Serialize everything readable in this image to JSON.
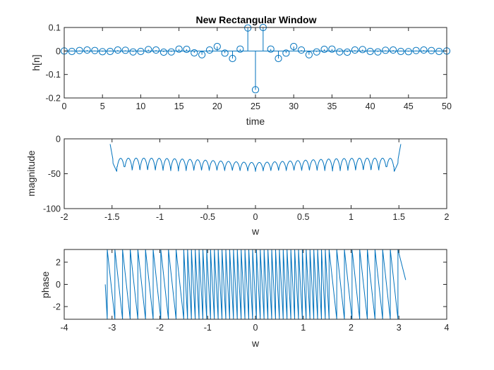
{
  "chart_data": [
    {
      "type": "stem",
      "title": "New Rectangular Window",
      "xlabel": "time",
      "ylabel": "h[n]",
      "xlim": [
        0,
        50
      ],
      "ylim": [
        -0.2,
        0.1
      ],
      "xticks": [
        0,
        5,
        10,
        15,
        20,
        25,
        30,
        35,
        40,
        45,
        50
      ],
      "xtick_labels": [
        "0",
        "5",
        "10",
        "15",
        "20",
        "25",
        "30",
        "35",
        "40",
        "45",
        "50"
      ],
      "yticks": [
        -0.2,
        -0.1,
        0,
        0.1
      ],
      "ytick_labels": [
        "-0.2",
        "-0.1",
        "0",
        "0.1"
      ],
      "grid": false,
      "color": "#0072BD",
      "x": [
        0,
        1,
        2,
        3,
        4,
        5,
        6,
        7,
        8,
        9,
        10,
        11,
        12,
        13,
        14,
        15,
        16,
        17,
        18,
        19,
        20,
        21,
        22,
        23,
        24,
        25,
        26,
        27,
        28,
        29,
        30,
        31,
        32,
        33,
        34,
        35,
        36,
        37,
        38,
        39,
        40,
        41,
        42,
        43,
        44,
        45,
        46,
        47,
        48,
        49,
        50
      ],
      "y": [
        0,
        -0.002,
        0.002,
        0.004,
        0.002,
        -0.003,
        -0.002,
        0.004,
        0.003,
        -0.004,
        -0.002,
        0.006,
        0.004,
        -0.005,
        -0.004,
        0.008,
        0.007,
        -0.008,
        -0.016,
        0.004,
        0.019,
        -0.009,
        -0.032,
        0.008,
        0.098,
        -0.165,
        0.1,
        0.008,
        -0.032,
        -0.009,
        0.019,
        0.004,
        -0.016,
        -0.004,
        0.007,
        0.008,
        -0.004,
        -0.005,
        0.004,
        0.006,
        -0.002,
        -0.004,
        0.003,
        0.004,
        -0.002,
        -0.003,
        0.002,
        0.004,
        0.002,
        -0.002,
        0
      ]
    },
    {
      "type": "line",
      "title": "",
      "xlabel": "w",
      "ylabel": "magnitude",
      "xlim": [
        -2,
        2
      ],
      "ylim": [
        -100,
        0
      ],
      "xticks": [
        -2,
        -1.5,
        -1,
        -0.5,
        0,
        0.5,
        1,
        1.5,
        2
      ],
      "xtick_labels": [
        "-2",
        "-1.5",
        "-1",
        "-0.5",
        "0",
        "0.5",
        "1",
        "1.5",
        "2"
      ],
      "yticks": [
        -100,
        -50,
        0
      ],
      "ytick_labels": [
        "-100",
        "-50",
        "0"
      ],
      "grid": false,
      "color": "#0072BD",
      "x_range": [
        -1.52,
        1.52
      ],
      "floor_db": -47,
      "lobe_top_db": -28,
      "passband_edge": 1.53,
      "deep_null_w": 1.43,
      "deep_null_db": -47,
      "lobe_count": 36
    },
    {
      "type": "line",
      "title": "",
      "xlabel": "w",
      "ylabel": "phase",
      "xlim": [
        -4,
        4
      ],
      "ylim": [
        -3.1416,
        3.1416
      ],
      "xticks": [
        -4,
        -3,
        -2,
        -1,
        0,
        1,
        2,
        3,
        4
      ],
      "xtick_labels": [
        "-4",
        "-3",
        "-2",
        "-1",
        "0",
        "1",
        "2",
        "3",
        "4"
      ],
      "yticks": [
        -2,
        0,
        2
      ],
      "ytick_labels": [
        "-2",
        "0",
        "2"
      ],
      "grid": false,
      "color": "#0072BD",
      "x_range": [
        -3.1416,
        3.1416
      ],
      "start_value": 0,
      "end_value": 0.4,
      "wrap_positions": [
        -3.1,
        -2.94,
        -2.78,
        -2.62,
        -2.46,
        -2.3,
        -2.14,
        -1.98,
        -1.82,
        -1.66,
        -1.5,
        -1.42,
        -1.34,
        -1.26,
        -1.18,
        -1.1,
        -1.02,
        -0.94,
        -0.86,
        -0.78,
        -0.7,
        -0.62,
        -0.54,
        -0.46,
        -0.38,
        -0.3,
        -0.22,
        -0.14,
        -0.06,
        0.02,
        0.1,
        0.18,
        0.26,
        0.34,
        0.42,
        0.5,
        0.58,
        0.66,
        0.74,
        0.82,
        0.9,
        0.98,
        1.06,
        1.14,
        1.22,
        1.3,
        1.38,
        1.46,
        1.54,
        1.7,
        1.86,
        2.02,
        2.18,
        2.34,
        2.5,
        2.66,
        2.82,
        2.98
      ]
    }
  ]
}
